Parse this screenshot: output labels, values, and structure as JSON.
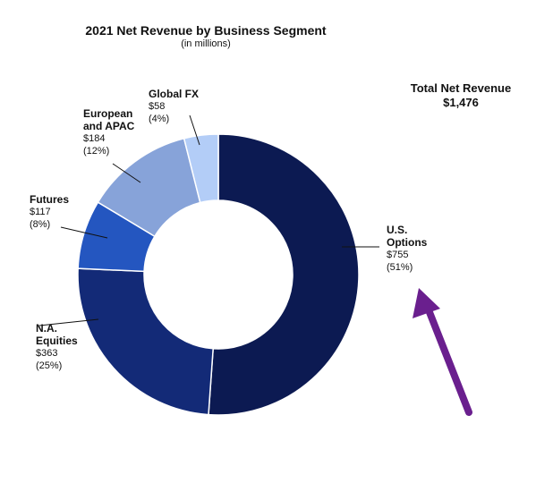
{
  "title": "2021 Net Revenue by Business Segment",
  "subtitle": "(in millions)",
  "total": {
    "label": "Total Net Revenue",
    "value": "$1,476"
  },
  "chart_data": {
    "type": "pie",
    "style": "donut",
    "title": "2021 Net Revenue by Business Segment",
    "subtitle": "(in millions)",
    "unit": "$ millions",
    "total": 1476,
    "series": [
      {
        "name": "U.S. Options",
        "name_lines": [
          "U.S.",
          "Options"
        ],
        "value": 755,
        "value_label": "$755",
        "percent_label": "(51%)",
        "color": "#0c1a52"
      },
      {
        "name": "N.A. Equities",
        "name_lines": [
          "N.A.",
          "Equities"
        ],
        "value": 363,
        "value_label": "$363",
        "percent_label": "(25%)",
        "color": "#132a77"
      },
      {
        "name": "Futures",
        "name_lines": [
          "Futures"
        ],
        "value": 117,
        "value_label": "$117",
        "percent_label": "(8%)",
        "color": "#2456c0"
      },
      {
        "name": "European and APAC",
        "name_lines": [
          "European",
          "and APAC"
        ],
        "value": 184,
        "value_label": "$184",
        "percent_label": "(12%)",
        "color": "#87a3d9"
      },
      {
        "name": "Global FX",
        "name_lines": [
          "Global FX"
        ],
        "value": 58,
        "value_label": "$58",
        "percent_label": "(4%)",
        "color": "#b3cdf7"
      }
    ]
  },
  "annotation": {
    "arrow_color": "#6a1f8e"
  }
}
